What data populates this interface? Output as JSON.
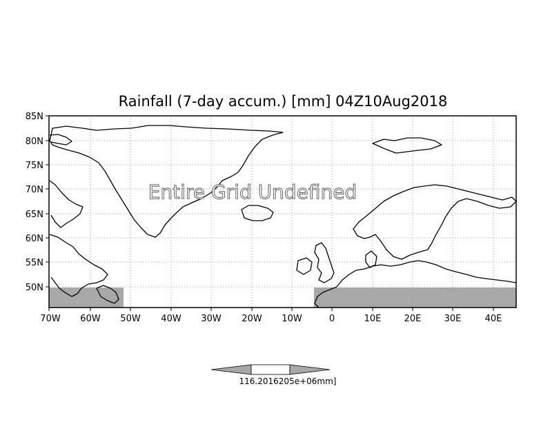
{
  "map": {
    "title": "Rainfall (7-day accum.) [mm] 04Z10Aug2018",
    "overlay_text": "Entire Grid Undefined",
    "lat_labels": [
      "85N",
      "80N",
      "75N",
      "70N",
      "65N",
      "60N",
      "55N",
      "50N"
    ],
    "lon_labels": [
      "70W",
      "60W",
      "50W",
      "40W",
      "30W",
      "20W",
      "10W",
      "0",
      "10E",
      "20E",
      "30E",
      "40E"
    ],
    "colors": {
      "land_outline": "#000000",
      "gridline": "#a0a0a0",
      "undefined_fill": "#a8a8a8",
      "frame": "#000000",
      "background": "#ffffff"
    }
  },
  "colorbar": {
    "label_text": "116.2016205e+06mm]",
    "left_arrow_color": "#a8a8a8",
    "right_arrow_color": "#a8a8a8",
    "center_color": "#ffffff"
  }
}
